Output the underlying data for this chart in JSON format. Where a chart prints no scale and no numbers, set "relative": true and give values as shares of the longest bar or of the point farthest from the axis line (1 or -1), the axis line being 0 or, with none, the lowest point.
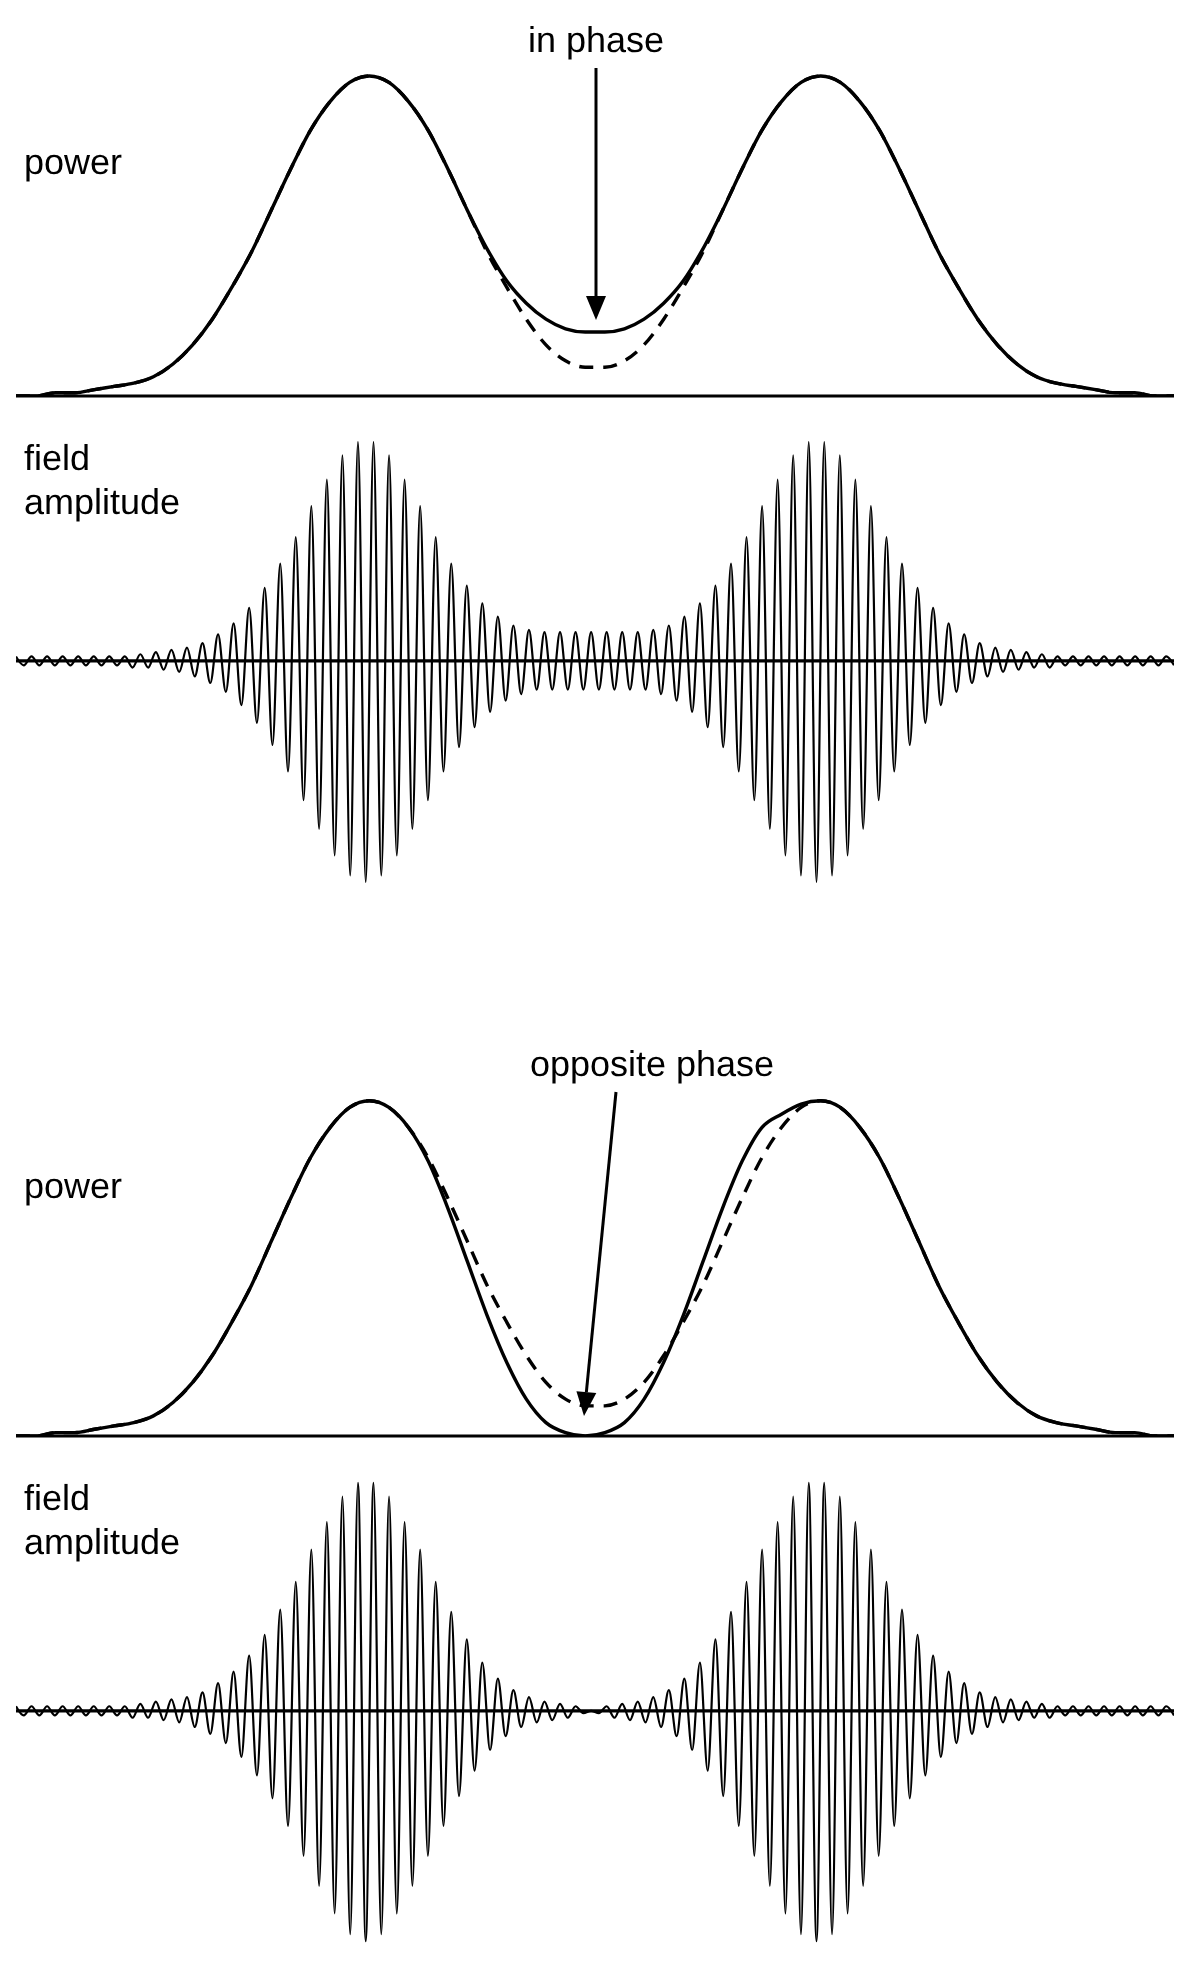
{
  "chart_data": [
    {
      "type": "line",
      "relative": true,
      "ylabel": "power",
      "annotations": [
        "in phase"
      ],
      "tick_labels": false,
      "grid": false,
      "categories": [
        null,
        null,
        null,
        null,
        null,
        null,
        null,
        null,
        null,
        null,
        null,
        null,
        null,
        null,
        null,
        null,
        null,
        null,
        null,
        null,
        null,
        null,
        null,
        null,
        null,
        null,
        null,
        null,
        null,
        null,
        null,
        null,
        null,
        null,
        null,
        null,
        null,
        null,
        null,
        null,
        null,
        null,
        null,
        null,
        null,
        null,
        null,
        null,
        null,
        null,
        null,
        null,
        null,
        null,
        null,
        null,
        null,
        null,
        null,
        null
      ],
      "series": [
        {
          "color": "#000000",
          "line_style": "dashed",
          "values": [
            0,
            0,
            0.01,
            0.01,
            0.02,
            0.03,
            0.04,
            0.06,
            0.1,
            0.16,
            0.24,
            0.34,
            0.45,
            0.58,
            0.71,
            0.83,
            0.92,
            0.98,
            1,
            0.98,
            0.92,
            0.83,
            0.71,
            0.58,
            0.45,
            0.34,
            0.24,
            0.16,
            0.11,
            0.09,
            0.09,
            0.11,
            0.16,
            0.24,
            0.34,
            0.45,
            0.58,
            0.71,
            0.83,
            0.92,
            0.98,
            1,
            0.98,
            0.92,
            0.83,
            0.71,
            0.58,
            0.45,
            0.34,
            0.24,
            0.16,
            0.1,
            0.06,
            0.04,
            0.03,
            0.02,
            0.01,
            0.01,
            0,
            0
          ]
        },
        {
          "color": "#000000",
          "line_style": "solid",
          "values": [
            0,
            0,
            0.01,
            0.01,
            0.02,
            0.03,
            0.04,
            0.06,
            0.1,
            0.16,
            0.24,
            0.34,
            0.45,
            0.58,
            0.71,
            0.83,
            0.92,
            0.98,
            1,
            0.98,
            0.92,
            0.83,
            0.71,
            0.58,
            0.46,
            0.36,
            0.29,
            0.24,
            0.21,
            0.2,
            0.2,
            0.21,
            0.24,
            0.29,
            0.36,
            0.46,
            0.58,
            0.71,
            0.83,
            0.92,
            0.98,
            1,
            0.98,
            0.92,
            0.83,
            0.71,
            0.58,
            0.45,
            0.34,
            0.24,
            0.16,
            0.1,
            0.06,
            0.04,
            0.03,
            0.02,
            0.01,
            0.01,
            0,
            0
          ]
        }
      ]
    },
    {
      "type": "line",
      "relative": true,
      "ylabel": "field amplitude",
      "tick_labels": false,
      "grid": false,
      "categories": [
        null,
        null,
        null,
        null,
        null,
        null,
        null,
        null,
        null,
        null,
        null,
        null,
        null,
        null,
        null,
        null,
        null,
        null,
        null,
        null,
        null,
        null,
        null,
        null,
        null,
        null,
        null,
        null,
        null,
        null,
        null,
        null,
        null,
        null,
        null,
        null,
        null,
        null,
        null,
        null,
        null,
        null,
        null,
        null,
        null,
        null,
        null,
        null,
        null,
        null,
        null,
        null,
        null,
        null,
        null,
        null,
        null,
        null,
        null,
        null,
        null,
        null,
        null,
        null,
        null,
        null,
        null,
        null,
        null,
        null,
        null,
        null,
        null,
        null,
        null,
        null,
        null,
        null,
        null,
        null,
        null,
        null,
        null,
        null,
        null,
        null,
        null,
        null,
        null,
        null,
        null,
        null,
        null,
        null,
        null,
        null,
        null,
        null,
        null,
        null,
        null,
        null,
        null,
        null,
        null,
        null,
        null,
        null,
        null,
        null,
        null,
        null,
        null,
        null,
        null,
        null,
        null,
        null,
        null,
        null,
        null,
        null,
        null,
        null,
        null,
        null,
        null,
        null,
        null,
        null,
        null,
        null,
        null,
        null,
        null,
        null,
        null,
        null,
        null,
        null,
        null,
        null,
        null,
        null,
        null,
        null,
        null,
        null,
        null,
        null
      ],
      "series": [
        {
          "color": "#000000",
          "values": [
            0.02,
            -0.02,
            0.02,
            -0.02,
            0.02,
            -0.02,
            0.02,
            -0.02,
            0.02,
            -0.02,
            0.02,
            -0.02,
            0.02,
            -0.02,
            0.02,
            -0.03,
            0.03,
            -0.03,
            0.04,
            -0.04,
            0.05,
            -0.05,
            0.06,
            -0.07,
            0.08,
            -0.1,
            0.12,
            -0.14,
            0.17,
            -0.2,
            0.24,
            -0.28,
            0.33,
            -0.38,
            0.44,
            -0.5,
            0.56,
            -0.63,
            0.7,
            -0.76,
            0.82,
            -0.88,
            0.93,
            -0.97,
            0.99,
            -1,
            0.99,
            -0.97,
            0.93,
            -0.88,
            0.82,
            -0.76,
            0.7,
            -0.63,
            0.56,
            -0.5,
            0.44,
            -0.39,
            0.34,
            -0.3,
            0.26,
            -0.23,
            0.2,
            -0.18,
            0.16,
            -0.15,
            0.14,
            -0.13,
            0.13,
            -0.13,
            0.13,
            -0.13,
            0.13,
            -0.13,
            0.13,
            -0.13,
            0.13,
            -0.13,
            0.13,
            -0.13,
            0.13,
            -0.13,
            0.14,
            -0.15,
            0.16,
            -0.18,
            0.2,
            -0.23,
            0.26,
            -0.3,
            0.34,
            -0.39,
            0.44,
            -0.5,
            0.56,
            -0.63,
            0.7,
            -0.76,
            0.82,
            -0.88,
            0.93,
            -0.97,
            0.99,
            -1,
            0.99,
            -0.97,
            0.93,
            -0.88,
            0.82,
            -0.76,
            0.7,
            -0.63,
            0.56,
            -0.5,
            0.44,
            -0.38,
            0.33,
            -0.28,
            0.24,
            -0.2,
            0.17,
            -0.14,
            0.12,
            -0.1,
            0.08,
            -0.07,
            0.06,
            -0.05,
            0.05,
            -0.04,
            0.04,
            -0.03,
            0.03,
            -0.03,
            0.02,
            -0.02,
            0.02,
            -0.02,
            0.02,
            -0.02,
            0.02,
            -0.02,
            0.02,
            -0.02,
            0.02,
            -0.02,
            0.02,
            -0.02,
            0.02,
            -0.02
          ]
        }
      ]
    },
    {
      "type": "line",
      "relative": true,
      "ylabel": "power",
      "annotations": [
        "opposite phase"
      ],
      "tick_labels": false,
      "grid": false,
      "categories": [
        null,
        null,
        null,
        null,
        null,
        null,
        null,
        null,
        null,
        null,
        null,
        null,
        null,
        null,
        null,
        null,
        null,
        null,
        null,
        null,
        null,
        null,
        null,
        null,
        null,
        null,
        null,
        null,
        null,
        null,
        null,
        null,
        null,
        null,
        null,
        null,
        null,
        null,
        null,
        null,
        null,
        null,
        null,
        null,
        null,
        null,
        null,
        null,
        null,
        null,
        null,
        null,
        null,
        null,
        null,
        null,
        null,
        null,
        null,
        null
      ],
      "series": [
        {
          "color": "#000000",
          "line_style": "dashed",
          "values": [
            0,
            0,
            0.01,
            0.01,
            0.02,
            0.03,
            0.04,
            0.06,
            0.1,
            0.16,
            0.24,
            0.34,
            0.45,
            0.58,
            0.71,
            0.83,
            0.92,
            0.98,
            1,
            0.98,
            0.92,
            0.83,
            0.71,
            0.58,
            0.45,
            0.34,
            0.24,
            0.16,
            0.11,
            0.09,
            0.09,
            0.11,
            0.16,
            0.24,
            0.34,
            0.45,
            0.58,
            0.71,
            0.83,
            0.92,
            0.98,
            1,
            0.98,
            0.92,
            0.83,
            0.71,
            0.58,
            0.45,
            0.34,
            0.24,
            0.16,
            0.1,
            0.06,
            0.04,
            0.03,
            0.02,
            0.01,
            0.01,
            0,
            0
          ]
        },
        {
          "color": "#000000",
          "line_style": "solid",
          "values": [
            0,
            0,
            0.01,
            0.01,
            0.02,
            0.03,
            0.04,
            0.06,
            0.1,
            0.16,
            0.24,
            0.34,
            0.45,
            0.58,
            0.71,
            0.83,
            0.92,
            0.98,
            1,
            0.98,
            0.92,
            0.82,
            0.68,
            0.52,
            0.36,
            0.22,
            0.11,
            0.04,
            0.01,
            0,
            0.01,
            0.04,
            0.11,
            0.22,
            0.36,
            0.52,
            0.68,
            0.82,
            0.92,
            0.96,
            0.99,
            1,
            0.98,
            0.92,
            0.83,
            0.71,
            0.58,
            0.45,
            0.34,
            0.24,
            0.16,
            0.1,
            0.06,
            0.04,
            0.03,
            0.02,
            0.01,
            0.01,
            0,
            0
          ]
        }
      ]
    },
    {
      "type": "line",
      "relative": true,
      "ylabel": "field amplitude",
      "tick_labels": false,
      "grid": false,
      "categories": [
        null,
        null,
        null,
        null,
        null,
        null,
        null,
        null,
        null,
        null,
        null,
        null,
        null,
        null,
        null,
        null,
        null,
        null,
        null,
        null,
        null,
        null,
        null,
        null,
        null,
        null,
        null,
        null,
        null,
        null,
        null,
        null,
        null,
        null,
        null,
        null,
        null,
        null,
        null,
        null,
        null,
        null,
        null,
        null,
        null,
        null,
        null,
        null,
        null,
        null,
        null,
        null,
        null,
        null,
        null,
        null,
        null,
        null,
        null,
        null,
        null,
        null,
        null,
        null,
        null,
        null,
        null,
        null,
        null,
        null,
        null,
        null,
        null,
        null,
        null,
        null,
        null,
        null,
        null,
        null,
        null,
        null,
        null,
        null,
        null,
        null,
        null,
        null,
        null,
        null,
        null,
        null,
        null,
        null,
        null,
        null,
        null,
        null,
        null,
        null,
        null,
        null,
        null,
        null,
        null,
        null,
        null,
        null,
        null,
        null,
        null,
        null,
        null,
        null,
        null,
        null,
        null,
        null,
        null,
        null,
        null,
        null,
        null,
        null,
        null,
        null,
        null,
        null,
        null,
        null,
        null,
        null,
        null,
        null,
        null,
        null,
        null,
        null,
        null,
        null,
        null,
        null,
        null,
        null,
        null,
        null,
        null,
        null,
        null,
        null
      ],
      "series": [
        {
          "color": "#000000",
          "values": [
            0.02,
            -0.02,
            0.02,
            -0.02,
            0.02,
            -0.02,
            0.02,
            -0.02,
            0.02,
            -0.02,
            0.02,
            -0.02,
            0.02,
            -0.02,
            0.02,
            -0.03,
            0.03,
            -0.03,
            0.04,
            -0.04,
            0.05,
            -0.05,
            0.06,
            -0.07,
            0.08,
            -0.1,
            0.12,
            -0.14,
            0.17,
            -0.2,
            0.24,
            -0.28,
            0.33,
            -0.38,
            0.44,
            -0.5,
            0.56,
            -0.63,
            0.7,
            -0.76,
            0.82,
            -0.88,
            0.93,
            -0.97,
            0.99,
            -1,
            0.99,
            -0.97,
            0.93,
            -0.88,
            0.82,
            -0.76,
            0.7,
            -0.63,
            0.56,
            -0.5,
            0.43,
            -0.37,
            0.31,
            -0.26,
            0.21,
            -0.17,
            0.14,
            -0.11,
            0.09,
            -0.07,
            0.06,
            -0.05,
            0.04,
            -0.04,
            0.03,
            -0.03,
            0.02,
            -0.01,
            0,
            -0.01,
            0.02,
            -0.03,
            0.03,
            -0.04,
            0.04,
            -0.05,
            0.06,
            -0.07,
            0.09,
            -0.11,
            0.14,
            -0.17,
            0.21,
            -0.26,
            0.31,
            -0.37,
            0.43,
            -0.5,
            0.56,
            -0.63,
            0.7,
            -0.76,
            0.82,
            -0.88,
            0.93,
            -0.97,
            0.99,
            -1,
            0.99,
            -0.97,
            0.93,
            -0.88,
            0.82,
            -0.76,
            0.7,
            -0.63,
            0.56,
            -0.5,
            0.44,
            -0.38,
            0.33,
            -0.28,
            0.24,
            -0.2,
            0.17,
            -0.14,
            0.12,
            -0.1,
            0.08,
            -0.07,
            0.06,
            -0.05,
            0.05,
            -0.04,
            0.04,
            -0.03,
            0.03,
            -0.03,
            0.02,
            -0.02,
            0.02,
            -0.02,
            0.02,
            -0.02,
            0.02,
            -0.02,
            0.02,
            -0.02,
            0.02,
            -0.02,
            0.02,
            -0.02,
            0.02,
            -0.02
          ]
        }
      ]
    }
  ]
}
